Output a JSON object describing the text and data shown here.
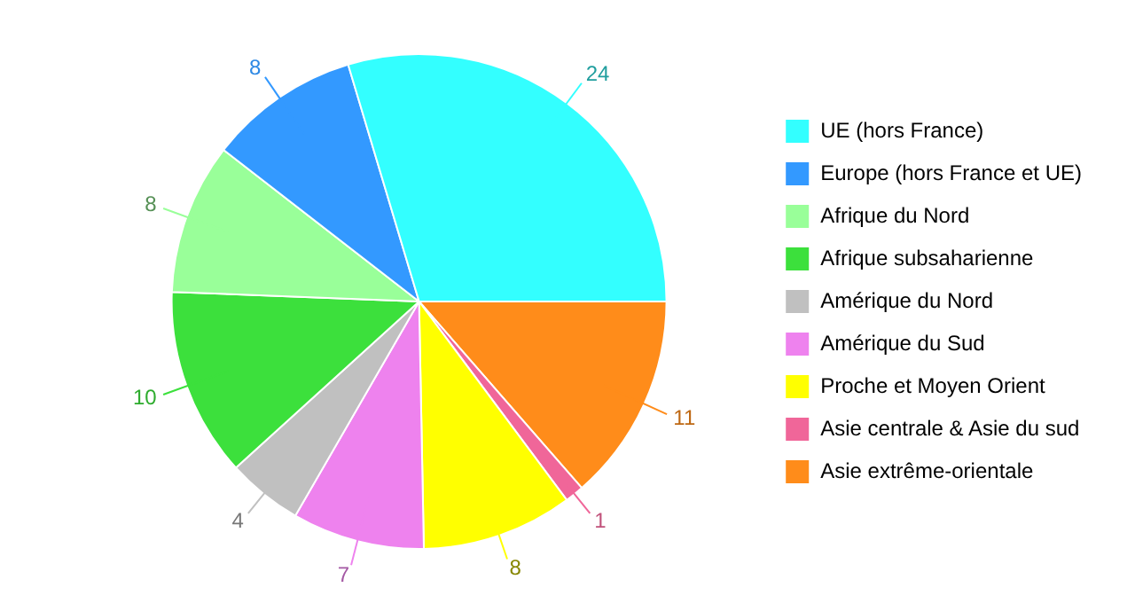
{
  "chart_data": {
    "type": "pie",
    "categories": [
      "UE (hors France)",
      "Europe (hors France et UE)",
      "Afrique du Nord",
      "Afrique subsaharienne",
      "Amérique du Nord",
      "Amérique du Sud",
      "Proche et Moyen Orient",
      "Asie centrale & Asie du sud",
      "Asie extrême-orientale"
    ],
    "values": [
      24,
      8,
      8,
      10,
      4,
      7,
      8,
      1,
      11
    ],
    "colors": [
      "#33ffff",
      "#3399ff",
      "#99ff99",
      "#3ce03c",
      "#c0c0c0",
      "#ee82ee",
      "#ffff00",
      "#f06699",
      "#ff8c1a"
    ],
    "data_labels": true,
    "legend": "right"
  }
}
